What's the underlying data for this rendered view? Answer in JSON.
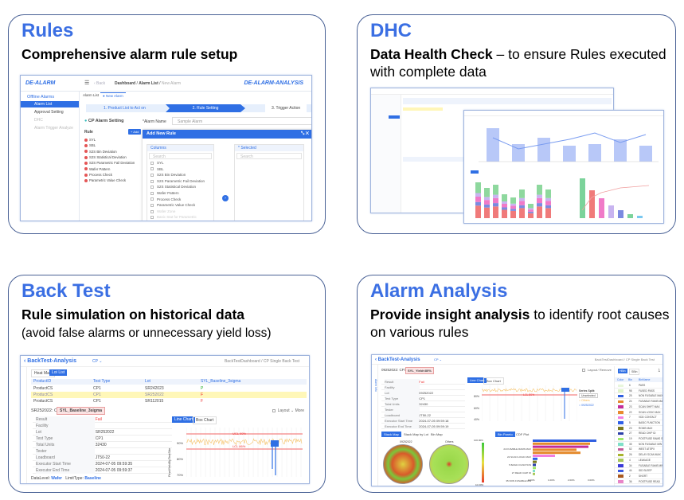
{
  "panels": {
    "rules": {
      "title": "Rules",
      "subtitle": "Comprehensive alarm rule setup"
    },
    "dhc": {
      "title": "DHC",
      "subtitle_bold": "Data Health Check",
      "subtitle_rest": " – to ensure  Rules executed with complete data"
    },
    "backtest": {
      "title": "Back Test",
      "subtitle_bold": "Rule simulation on historical data",
      "subtitle_rest": "(avoid false alarms or unnecessary yield loss)"
    },
    "analysis": {
      "title": "Alarm Analysis",
      "subtitle_bold": "Provide insight analysis",
      "subtitle_rest": " to identify root causes on various rules"
    }
  },
  "rules_app": {
    "logo": "DE-ALARM",
    "back": "‹ Back",
    "breadcrumb": [
      "Dashboard",
      "Alarm List",
      "New Alarm"
    ],
    "brand_right": "DE-ALARM-ANALYSIS",
    "sidebar_group": "Offline Alarms",
    "sidebar_items": [
      "Alarm List",
      "Approval Setting",
      "DHC",
      "Alarm Trigger Analyze"
    ],
    "tabs": [
      "Alarm List",
      "● New Alarm"
    ],
    "steps": [
      "1. Product List to Act on",
      "2. Rule Setting",
      "3. Trigger Action"
    ],
    "section_title": "CP Alarm Setting",
    "alarm_name_label": "*Alarm Name",
    "alarm_name_value": "Sample Alarm",
    "rule_label": "Rule",
    "add_label": "+ Add",
    "rules": [
      "SYL",
      "SBL",
      "S2S Bin Deviation",
      "S2S Statistical Deviation",
      "S2S Parametric Fail Deviation",
      "Wafer Pattern",
      "Process Check",
      "Parametric Value Check"
    ],
    "modal_title": "Add New Rule",
    "columns_label": "Columns",
    "selected_label": "* Selected",
    "search_placeholder": "Search",
    "columns": [
      "SYL",
      "SBL",
      "S2S Bin Deviation",
      "S2S Parametric Fail Deviation",
      "S2S Statistical Deviation",
      "Wafer Pattern",
      "Process Check",
      "Parametric Value Check",
      "Wafer Zone",
      "Basic Stat for Parametric"
    ]
  },
  "backtest_app": {
    "title": "BackTest-Analysis",
    "mode": "CP ⌄",
    "breadcrumb": "BackTestDashboard  /  CP Single Back Test",
    "tabs": [
      "Heat Map",
      "Lot List"
    ],
    "table_headers": [
      "ProductID",
      "Test Type",
      "Lot",
      "SYL_Baseline_3sigma"
    ],
    "table_rows": [
      [
        "ProductCS",
        "CP1",
        "SR242023",
        "P"
      ],
      [
        "ProductCS",
        "CP1",
        "SR252022",
        "F"
      ],
      [
        "ProductCS",
        "CP1",
        "SR112015",
        "F"
      ]
    ],
    "detail_title": "SR252022: CP1",
    "detail_tag": "SYL_Baseline_3sigma",
    "layout_label": "Layout",
    "more_label": "More",
    "kv": [
      [
        "Result",
        "Fail"
      ],
      [
        "Facility",
        ""
      ],
      [
        "Lot",
        "SR252022"
      ],
      [
        "Test Type",
        "CP1"
      ],
      [
        "Total Units",
        "32430"
      ],
      [
        "Tester",
        ""
      ],
      [
        "Loadboard",
        "JT50-22"
      ],
      [
        "Executor Start Time",
        "2024-07-05 09:59:35"
      ],
      [
        "Executor End Time",
        "2024-07-05 09:59:37"
      ]
    ],
    "footer": {
      "data_level_label": "DataLevel:",
      "data_level": "Wafer",
      "limit_type_label": "LimitType:",
      "limit_type": "Baseline"
    },
    "chart_tabs": [
      "Line Chart",
      "Box Chart"
    ],
    "ucl": "UCL  99%",
    "lcl": "LCL  86%",
    "yticks": [
      "90%",
      "80%",
      "70%"
    ],
    "ylabel": "FinalYieldByTestSite"
  },
  "analysis_app": {
    "title": "BackTest-Analysis",
    "mode": "CP ⌄",
    "breadcrumb": "BackTestDashboard  /  CP Single Back Test",
    "side_tab": "Alarm Info",
    "detail_title": "09252022: CP1",
    "detail_tag": "SYL_Yield<80%",
    "layout_label": "Layout",
    "remove_label": "Remove",
    "kv": [
      [
        "Result",
        "Fail"
      ],
      [
        "Facility",
        ""
      ],
      [
        "Lot",
        "09252022"
      ],
      [
        "Test Type",
        "CP1"
      ],
      [
        "Total Units",
        "32430"
      ],
      [
        "Tester",
        ""
      ],
      [
        "Loadboard",
        "JT50-22"
      ],
      [
        "Executor Start Time",
        "2024-07-05 09:59:18"
      ],
      [
        "Executor End Time",
        "2024-07-05 09:59:19"
      ]
    ],
    "chart_tabs": [
      "Line Chart",
      "Box Chart"
    ],
    "lcl": "LCL  80%",
    "yticks": [
      "80%",
      "60%",
      "40%"
    ],
    "series_split_label": "Series Split:",
    "series_split_value": "Unselected",
    "legend": [
      "Others",
      "09252022"
    ],
    "map_tabs": [
      "Stack Map",
      "Stack Map by Lot",
      "Bin Map"
    ],
    "map_titles": [
      "09252022",
      "Others"
    ],
    "scale_max": "100.00%",
    "scale_min": "10.00%",
    "pareto_tabs": [
      "Bin Pareto",
      "CDF Plot"
    ],
    "pareto_labels": [
      "24 FUSABLE RAMS MAX",
      "22 SCAN LOGIC MAX",
      "5 BASIC FUNCTION",
      "27 READ CHIP ID",
      "35 NON FUSABLE MIN"
    ],
    "pareto_xticks": [
      "0.00%",
      "1.00%",
      "2.00%",
      "3.00%"
    ],
    "bin_tabs": [
      "HBin",
      "SBin"
    ],
    "bin_headers": [
      "Color",
      "Bin",
      "BinName"
    ],
    "bins": [
      [
        "#e8f6dc",
        "6",
        "PASS"
      ],
      [
        "#dff3c9",
        "98",
        "FUSED PASS"
      ],
      [
        "#2f5fe0",
        "25",
        "NON FUSABLE MAX"
      ],
      [
        "#e48a2c",
        "24",
        "FUSABLE RAMS MAX"
      ],
      [
        "#c42c9a",
        "23",
        "SCAN SHIFT MAX"
      ],
      [
        "#e9892e",
        "22",
        "SCAN LOGIC MAX"
      ],
      [
        "#f27ee0",
        "7",
        "VDD CONTACT"
      ],
      [
        "#2e5fe8",
        "5",
        "BASIC FUNCTION"
      ],
      [
        "#7b7a1e",
        "23",
        "ROMS MAX"
      ],
      [
        "#2b3fa8",
        "27",
        "READ CHIP ID"
      ],
      [
        "#a0e86a",
        "19",
        "POSTFUSE RAMS S"
      ],
      [
        "#7fe0c8",
        "35",
        "NON FUSABLE MIN"
      ],
      [
        "#c45a9a",
        "52",
        "WEST ATSPX"
      ],
      [
        "#a8b42c",
        "26",
        "DELAY SCAN MAX"
      ],
      [
        "#a8c85a",
        "4",
        "LEAKAGE"
      ],
      [
        "#3a3ad8",
        "34",
        "FUSABLE RAMS MIN"
      ],
      [
        "#3a58e0",
        "44",
        "IDD SLEEP"
      ],
      [
        "#a8581e",
        "2",
        "SHORT"
      ],
      [
        "#e884c8",
        "36",
        "POSTFUSE READ"
      ]
    ]
  }
}
